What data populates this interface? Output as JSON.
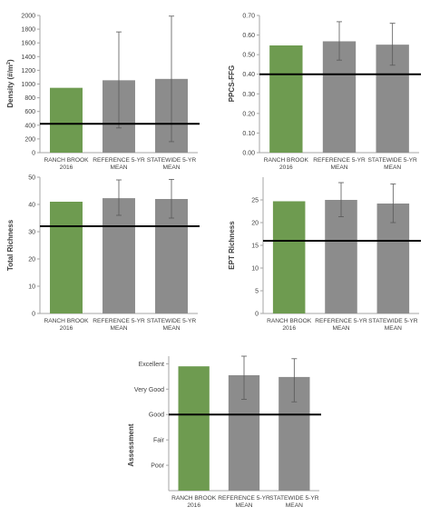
{
  "colors": {
    "site": "#6e9b50",
    "reference": "#8c8c8c",
    "axis": "#a6a6a6",
    "threshold": "#000000",
    "error": "#595959"
  },
  "chart_data": [
    {
      "type": "bar",
      "ylabel_main": "Density (#/m",
      "ylabel_sup": "2",
      "ylabel_tail": ")",
      "categories": [
        [
          "RANCH BROOK",
          "2016"
        ],
        [
          "REFERENCE 5-YR",
          "MEAN"
        ],
        [
          "STATEWIDE 5-YR",
          "MEAN"
        ]
      ],
      "values": [
        945,
        1055,
        1075
      ],
      "error_low": [
        null,
        360,
        160
      ],
      "error_high": [
        null,
        1760,
        1990
      ],
      "threshold": 420,
      "ylim": [
        0,
        2000
      ],
      "ticks": [
        0,
        200,
        400,
        600,
        800,
        1000,
        1200,
        1400,
        1600,
        1800,
        2000
      ],
      "tick_labels": [
        "0",
        "200",
        "400",
        "600",
        "800",
        "1000",
        "1200",
        "1400",
        "1600",
        "1800",
        "2000"
      ]
    },
    {
      "type": "bar",
      "ylabel_main": "PPCS-FFG",
      "categories": [
        [
          "RANCH BROOK",
          "2016"
        ],
        [
          "REFERENCE 5-YR",
          "MEAN"
        ],
        [
          "STATEWIDE 5-YR",
          "MEAN"
        ]
      ],
      "values": [
        0.547,
        0.568,
        0.551
      ],
      "error_low": [
        null,
        0.472,
        0.446
      ],
      "error_high": [
        null,
        0.668,
        0.66
      ],
      "threshold": 0.4,
      "ylim": [
        0,
        0.7
      ],
      "ticks": [
        0,
        0.1,
        0.2,
        0.3,
        0.4,
        0.5,
        0.6,
        0.7
      ],
      "tick_labels": [
        "0.00",
        "0.10",
        "0.20",
        "0.30",
        "0.40",
        "0.50",
        "0.60",
        "0.70"
      ]
    },
    {
      "type": "bar",
      "ylabel_main": "Total Richness",
      "categories": [
        [
          "RANCH BROOK",
          "2016"
        ],
        [
          "REFERENCE 5-YR",
          "MEAN"
        ],
        [
          "STATEWIDE 5-YR",
          "MEAN"
        ]
      ],
      "values": [
        41,
        42.3,
        42
      ],
      "error_low": [
        null,
        36,
        35
      ],
      "error_high": [
        null,
        49,
        49.2
      ],
      "threshold": 32,
      "ylim": [
        0,
        50
      ],
      "ticks": [
        0,
        10,
        20,
        30,
        40,
        50
      ],
      "tick_labels": [
        "0",
        "10",
        "20",
        "30",
        "40",
        "50"
      ]
    },
    {
      "type": "bar",
      "ylabel_main": "EPT Richness",
      "categories": [
        [
          "RANCH BROOK",
          "2016"
        ],
        [
          "REFERENCE 5-YR",
          "MEAN"
        ],
        [
          "STATEWIDE 5-YR",
          "MEAN"
        ]
      ],
      "values": [
        24.7,
        25,
        24.2
      ],
      "error_low": [
        null,
        21.3,
        20
      ],
      "error_high": [
        null,
        28.8,
        28.5
      ],
      "threshold": 16,
      "ylim": [
        0,
        30
      ],
      "ticks": [
        0,
        5,
        10,
        15,
        20,
        25
      ],
      "tick_labels": [
        "0",
        "5",
        "10",
        "15",
        "20",
        "25"
      ]
    },
    {
      "type": "bar",
      "ylabel_main": "Assessment",
      "categories": [
        [
          "RANCH BROOK",
          "2016"
        ],
        [
          "REFERENCE 5-YR",
          "MEAN"
        ],
        [
          "STATEWIDE 5-YR",
          "MEAN"
        ]
      ],
      "values": [
        5.9,
        5.55,
        5.48
      ],
      "error_low": [
        null,
        4.6,
        4.5
      ],
      "error_high": [
        null,
        6.3,
        6.2
      ],
      "threshold": 4,
      "ylim": [
        1,
        6.3
      ],
      "ticks": [
        2,
        3,
        4,
        5,
        6
      ],
      "tick_labels": [
        "Poor",
        "Fair",
        "Good",
        "Very Good",
        "Excellent"
      ]
    }
  ]
}
